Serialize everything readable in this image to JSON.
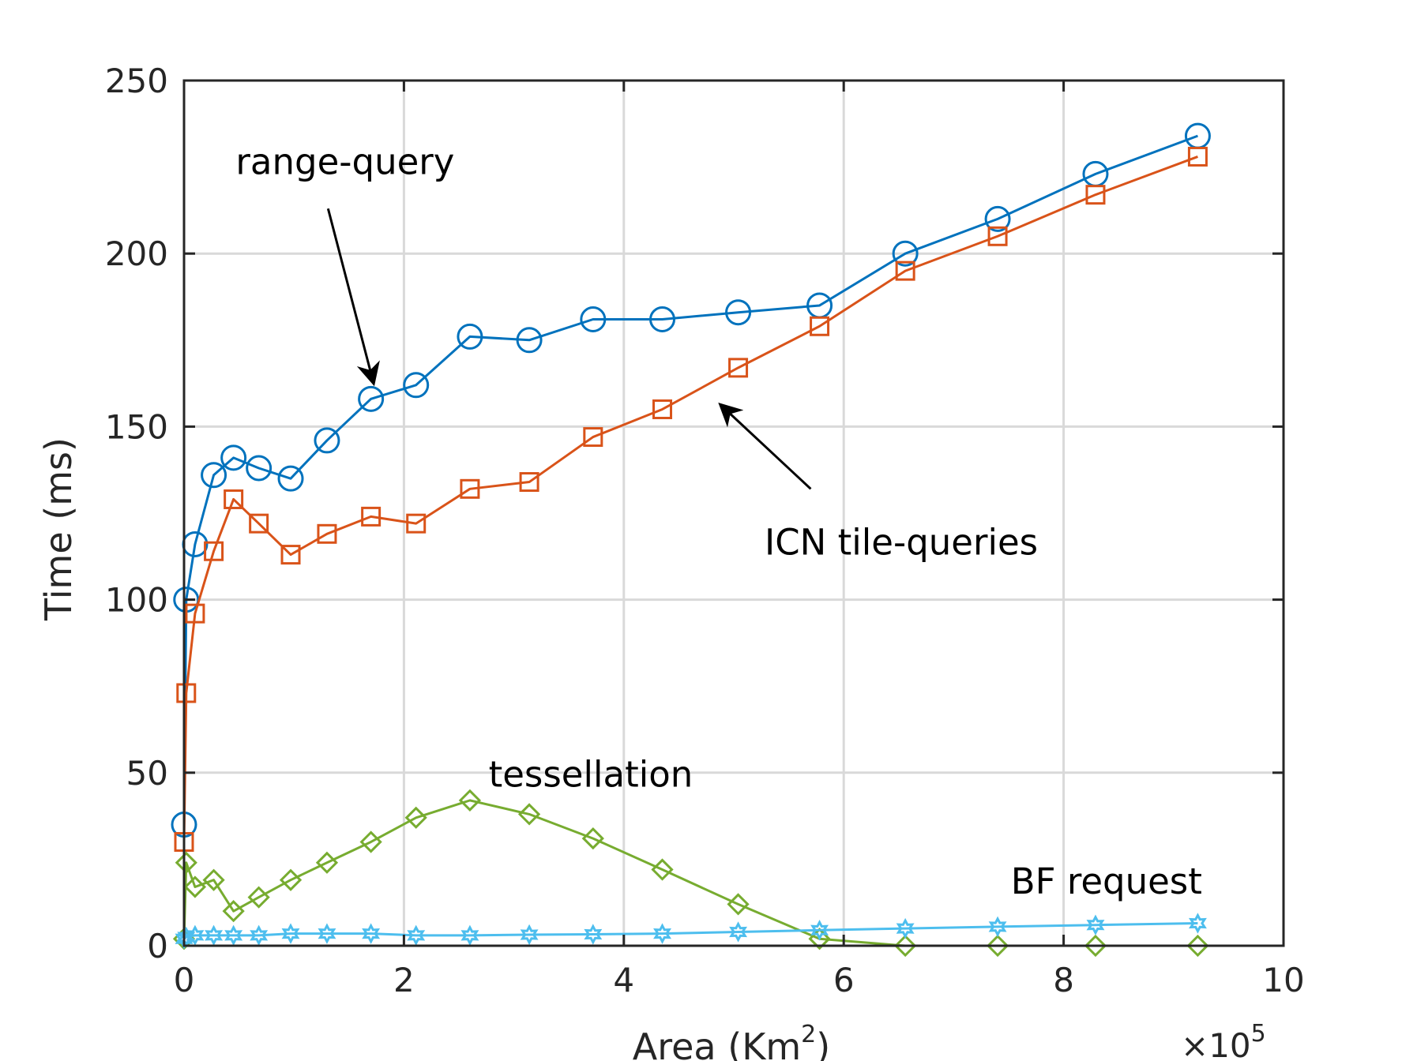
{
  "chart_data": {
    "type": "line",
    "xlabel_main": "Area (Km",
    "xlabel_sup": "2",
    "xlabel_close": ")",
    "ylabel": "Time (ms)",
    "xlim": [
      0,
      10
    ],
    "ylim": [
      0,
      250
    ],
    "x_ticks": [
      0,
      2,
      4,
      6,
      8,
      10
    ],
    "y_ticks": [
      0,
      50,
      100,
      150,
      200,
      250
    ],
    "x_exponent_prefix": "×10",
    "x_exponent_power": "5",
    "grid": true,
    "series": [
      {
        "name": "range-query",
        "color": "#0072BD",
        "marker": "circle",
        "x": [
          0.0,
          0.02,
          0.1,
          0.27,
          0.45,
          0.68,
          0.97,
          1.3,
          1.7,
          2.11,
          2.6,
          3.14,
          3.72,
          4.35,
          5.04,
          5.78,
          6.56,
          7.4,
          8.29,
          9.22
        ],
        "y": [
          35,
          100,
          116,
          136,
          141,
          138,
          135,
          146,
          158,
          162,
          176,
          175,
          181,
          181,
          183,
          185,
          200,
          210,
          223,
          234
        ]
      },
      {
        "name": "ICN tile-queries",
        "color": "#D95319",
        "marker": "square",
        "x": [
          0.0,
          0.02,
          0.1,
          0.27,
          0.45,
          0.68,
          0.97,
          1.3,
          1.7,
          2.11,
          2.6,
          3.14,
          3.72,
          4.35,
          5.04,
          5.78,
          6.56,
          7.4,
          8.29,
          9.22
        ],
        "y": [
          30,
          73,
          96,
          114,
          129,
          122,
          113,
          119,
          124,
          122,
          132,
          134,
          147,
          155,
          167,
          179,
          195,
          205,
          217,
          228
        ]
      },
      {
        "name": "tessellation",
        "color": "#77AC30",
        "marker": "diamond",
        "x": [
          0.0,
          0.02,
          0.1,
          0.27,
          0.45,
          0.68,
          0.97,
          1.3,
          1.7,
          2.11,
          2.6,
          3.14,
          3.72,
          4.35,
          5.04,
          5.78,
          6.56,
          7.4,
          8.29,
          9.22
        ],
        "y": [
          2,
          24,
          17,
          19,
          10,
          14,
          19,
          24,
          30,
          37,
          42,
          38,
          31,
          22,
          12,
          2,
          0,
          0,
          0,
          0
        ]
      },
      {
        "name": "BF request",
        "color": "#4DBEEE",
        "marker": "hexagram",
        "x": [
          0.0,
          0.02,
          0.1,
          0.27,
          0.45,
          0.68,
          0.97,
          1.3,
          1.7,
          2.11,
          2.6,
          3.14,
          3.72,
          4.35,
          5.04,
          5.78,
          6.56,
          7.4,
          8.29,
          9.22
        ],
        "y": [
          2,
          2.5,
          3,
          3,
          3,
          3,
          3.5,
          3.5,
          3.5,
          3,
          3,
          3.2,
          3.3,
          3.5,
          4,
          4.5,
          5,
          5.5,
          6,
          6.5
        ]
      }
    ],
    "annotations": [
      {
        "text": "range-query",
        "arrow_to": [
          1.72,
          163
        ],
        "arrow_from": [
          1.31,
          213
        ],
        "text_at": [
          0.47,
          223
        ]
      },
      {
        "text": "ICN tile-queries",
        "arrow_to": [
          4.89,
          156
        ],
        "arrow_from": [
          5.7,
          132
        ],
        "text_at": [
          5.28,
          113
        ]
      },
      {
        "text": "tessellation",
        "text_at": [
          2.77,
          46
        ]
      },
      {
        "text": "BF request",
        "text_at": [
          7.52,
          15
        ]
      }
    ]
  }
}
